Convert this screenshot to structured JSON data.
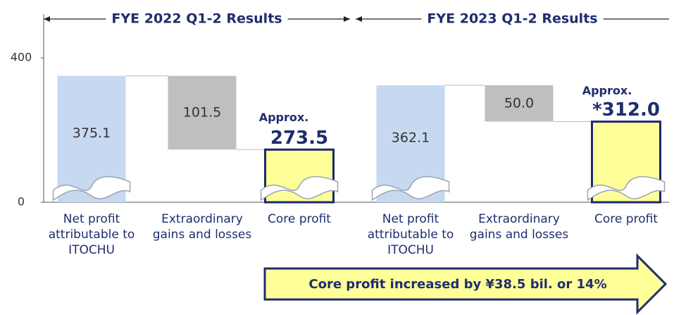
{
  "chart_data": {
    "type": "waterfall",
    "ylim": [
      0,
      400
    ],
    "yticks": [
      0,
      400
    ],
    "colors": {
      "start": "#c6d9f0",
      "change": "#bfbfbf",
      "end": "#ffff99",
      "end_border": "#1c2a6b"
    },
    "groups": [
      {
        "title": "FYE 2022 Q1-2 Results",
        "categories": [
          "Net profit attributable to ITOCHU",
          "Extraordinary gains and losses",
          "Core profit"
        ],
        "values": [
          375.1,
          101.5,
          273.5
        ],
        "value_labels": [
          "375.1",
          "101.5",
          "273.5"
        ],
        "notes": [
          null,
          null,
          "Approx."
        ]
      },
      {
        "title": "FYE 2023 Q1-2 Results",
        "categories": [
          "Net profit attributable to ITOCHU",
          "Extraordinary gains and losses",
          "Core profit"
        ],
        "values": [
          362.1,
          50.0,
          312.0
        ],
        "value_labels": [
          "362.1",
          "50.0",
          "*312.0"
        ],
        "notes": [
          null,
          null,
          "Approx."
        ]
      }
    ],
    "annotation": "Core profit increased by ¥38.5 bil. or 14%"
  }
}
